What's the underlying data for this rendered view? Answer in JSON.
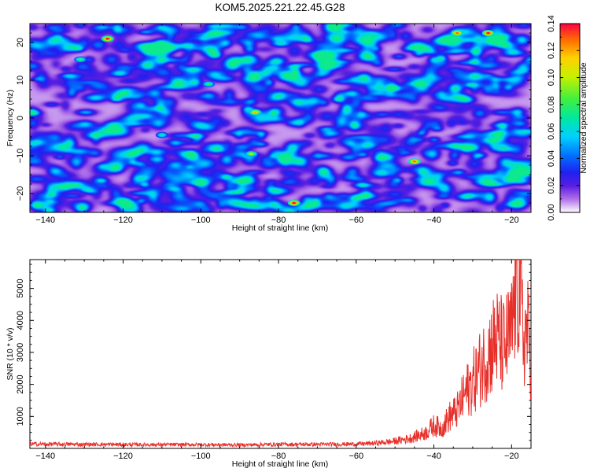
{
  "title": "KOM5.2025.221.22.45.G28",
  "chart_data": [
    {
      "type": "heatmap",
      "xlabel": "Height of straight line (km)",
      "ylabel": "Frequency (Hz)",
      "xlim": [
        -144,
        -15
      ],
      "ylim": [
        -25,
        25
      ],
      "xticks": [
        -140,
        -120,
        -100,
        -80,
        -60,
        -40,
        -20
      ],
      "yticks": [
        -20,
        -10,
        0,
        10,
        20
      ],
      "colorbar": {
        "label": "Normalized spectral amplitude",
        "range": [
          0,
          0.14
        ],
        "ticks": [
          0.0,
          0.02,
          0.04,
          0.06,
          0.08,
          0.1,
          0.12,
          0.14
        ],
        "tick_labels": [
          "0.00",
          "0.02",
          "0.04",
          "0.06",
          "0.08",
          "0.10",
          "0.12",
          "0.14"
        ]
      },
      "background_level": 0.03,
      "peaks": [
        {
          "x": -124,
          "y": 21,
          "value": 0.14
        },
        {
          "x": -34,
          "y": 22.5,
          "value": 0.13
        },
        {
          "x": -26,
          "y": 22.5,
          "value": 0.14
        },
        {
          "x": -86,
          "y": 1.5,
          "value": 0.12
        },
        {
          "x": -45,
          "y": -11.5,
          "value": 0.13
        },
        {
          "x": -76,
          "y": -22.5,
          "value": 0.14
        },
        {
          "x": -87,
          "y": -9.5,
          "value": 0.1
        },
        {
          "x": -131,
          "y": 15.5,
          "value": 0.08
        },
        {
          "x": -98,
          "y": 9,
          "value": 0.08
        },
        {
          "x": -110,
          "y": -4.5,
          "value": 0.07
        }
      ]
    },
    {
      "type": "line",
      "xlabel": "Height of straight line (km)",
      "ylabel": "SNR (10 * v/v)",
      "xlim": [
        -144,
        -15
      ],
      "ylim": [
        0,
        5900
      ],
      "xticks": [
        -140,
        -120,
        -100,
        -80,
        -60,
        -40,
        -20
      ],
      "yticks": [
        1000,
        2000,
        3000,
        4000,
        5000
      ],
      "color": "#e8302b",
      "series": [
        {
          "name": "SNR",
          "x": [
            -144,
            -130,
            -115,
            -100,
            -90,
            -80,
            -70,
            -60,
            -55,
            -50,
            -46,
            -42,
            -40,
            -38,
            -36,
            -34,
            -32,
            -30,
            -28,
            -26,
            -24,
            -22,
            -20,
            -19,
            -18,
            -17,
            -16,
            -15
          ],
          "y": [
            150,
            140,
            130,
            130,
            120,
            140,
            140,
            150,
            180,
            250,
            350,
            550,
            800,
            700,
            1100,
            1300,
            1900,
            2300,
            2800,
            3300,
            3800,
            3500,
            4000,
            5400,
            5900,
            3800,
            4100,
            3300
          ]
        }
      ]
    }
  ]
}
